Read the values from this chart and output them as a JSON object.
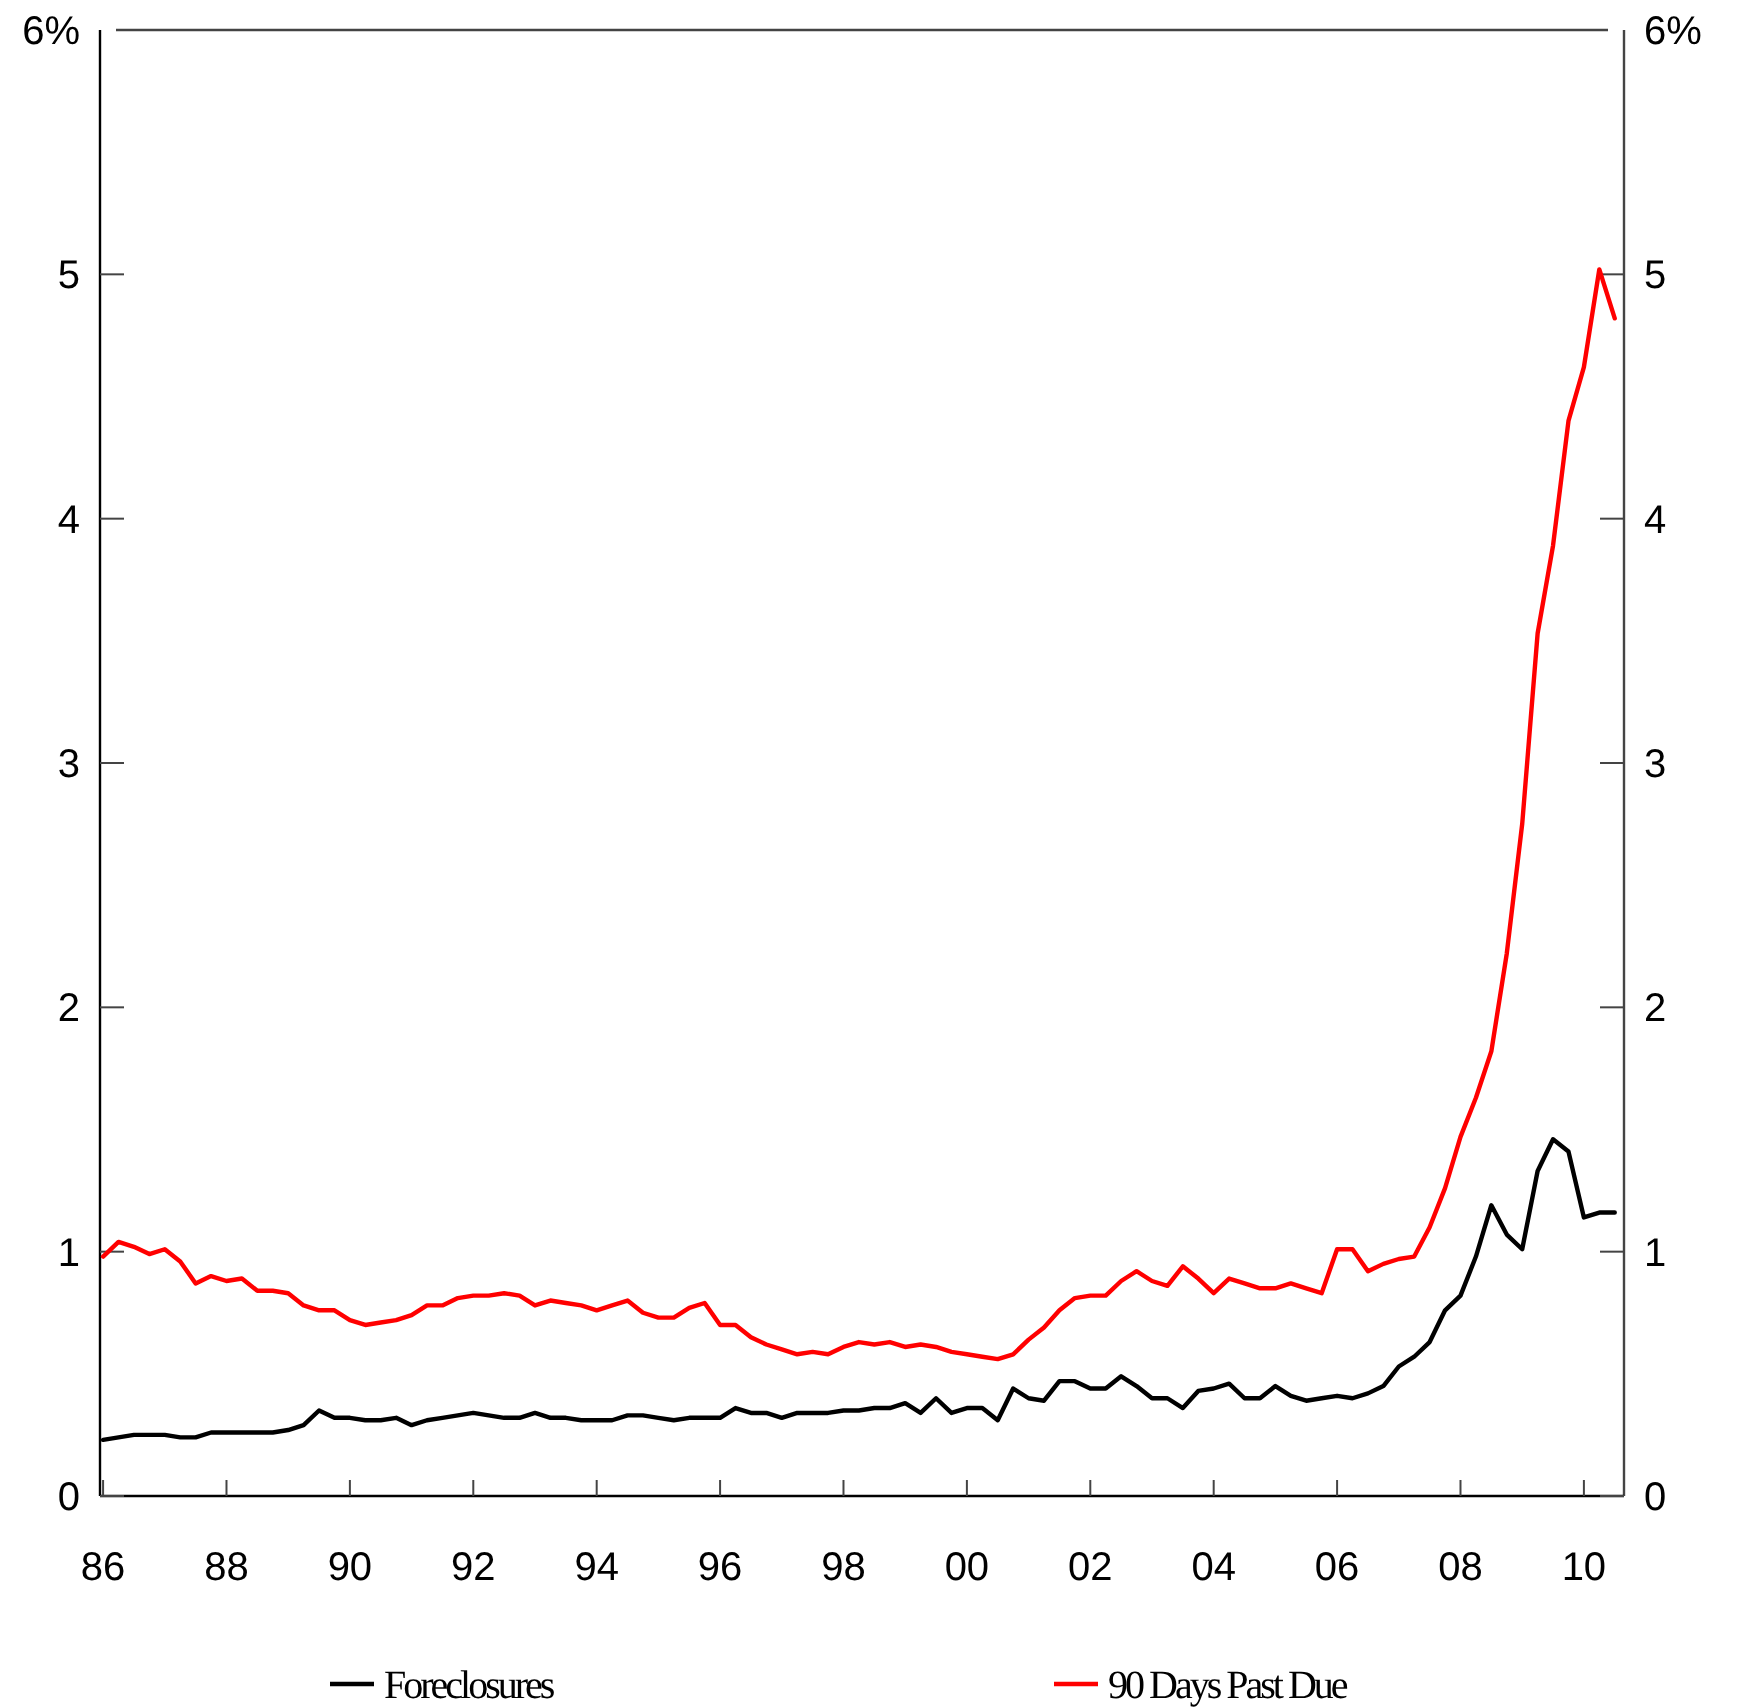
{
  "chart_data": {
    "type": "line",
    "x": [
      1986,
      1986.25,
      1986.5,
      1986.75,
      1987,
      1987.25,
      1987.5,
      1987.75,
      1988,
      1988.25,
      1988.5,
      1988.75,
      1989,
      1989.25,
      1989.5,
      1989.75,
      1990,
      1990.25,
      1990.5,
      1990.75,
      1991,
      1991.25,
      1991.5,
      1991.75,
      1992,
      1992.25,
      1992.5,
      1992.75,
      1993,
      1993.25,
      1993.5,
      1993.75,
      1994,
      1994.25,
      1994.5,
      1994.75,
      1995,
      1995.25,
      1995.5,
      1995.75,
      1996,
      1996.25,
      1996.5,
      1996.75,
      1997,
      1997.25,
      1997.5,
      1997.75,
      1998,
      1998.25,
      1998.5,
      1998.75,
      1999,
      1999.25,
      1999.5,
      1999.75,
      2000,
      2000.25,
      2000.5,
      2000.75,
      2001,
      2001.25,
      2001.5,
      2001.75,
      2002,
      2002.25,
      2002.5,
      2002.75,
      2003,
      2003.25,
      2003.5,
      2003.75,
      2004,
      2004.25,
      2004.5,
      2004.75,
      2005,
      2005.25,
      2005.5,
      2005.75,
      2006,
      2006.25,
      2006.5,
      2006.75,
      2007,
      2007.25,
      2007.5,
      2007.75,
      2008,
      2008.25,
      2008.5,
      2008.75,
      2009,
      2009.25,
      2009.5,
      2009.75,
      2010,
      2010.25,
      2010.5
    ],
    "series": [
      {
        "name": "Foreclosures",
        "color": "#000000",
        "values": [
          0.23,
          0.24,
          0.25,
          0.25,
          0.25,
          0.24,
          0.24,
          0.26,
          0.26,
          0.26,
          0.26,
          0.26,
          0.27,
          0.29,
          0.35,
          0.32,
          0.32,
          0.31,
          0.31,
          0.32,
          0.29,
          0.31,
          0.32,
          0.33,
          0.34,
          0.33,
          0.32,
          0.32,
          0.34,
          0.32,
          0.32,
          0.31,
          0.31,
          0.31,
          0.33,
          0.33,
          0.32,
          0.31,
          0.32,
          0.32,
          0.32,
          0.36,
          0.34,
          0.34,
          0.32,
          0.34,
          0.34,
          0.34,
          0.35,
          0.35,
          0.36,
          0.36,
          0.38,
          0.34,
          0.4,
          0.34,
          0.36,
          0.36,
          0.31,
          0.44,
          0.4,
          0.39,
          0.47,
          0.47,
          0.44,
          0.44,
          0.49,
          0.45,
          0.4,
          0.4,
          0.36,
          0.43,
          0.44,
          0.46,
          0.4,
          0.4,
          0.45,
          0.41,
          0.39,
          0.4,
          0.41,
          0.4,
          0.42,
          0.45,
          0.53,
          0.57,
          0.63,
          0.76,
          0.82,
          0.98,
          1.19,
          1.07,
          1.01,
          1.33,
          1.46,
          1.41,
          1.14,
          1.16,
          1.16
        ]
      },
      {
        "name": "90 Days Past Due",
        "color": "#ff0000",
        "values": [
          0.98,
          1.04,
          1.02,
          0.99,
          1.01,
          0.96,
          0.87,
          0.9,
          0.88,
          0.89,
          0.84,
          0.84,
          0.83,
          0.78,
          0.76,
          0.76,
          0.72,
          0.7,
          0.71,
          0.72,
          0.74,
          0.78,
          0.78,
          0.81,
          0.82,
          0.82,
          0.83,
          0.82,
          0.78,
          0.8,
          0.79,
          0.78,
          0.76,
          0.78,
          0.8,
          0.75,
          0.73,
          0.73,
          0.77,
          0.79,
          0.7,
          0.7,
          0.65,
          0.62,
          0.6,
          0.58,
          0.59,
          0.58,
          0.61,
          0.63,
          0.62,
          0.63,
          0.61,
          0.62,
          0.61,
          0.59,
          0.58,
          0.57,
          0.56,
          0.58,
          0.64,
          0.69,
          0.76,
          0.81,
          0.82,
          0.82,
          0.88,
          0.92,
          0.88,
          0.86,
          0.94,
          0.89,
          0.83,
          0.89,
          0.87,
          0.85,
          0.85,
          0.87,
          0.85,
          0.83,
          1.01,
          1.01,
          0.92,
          0.95,
          0.97,
          0.98,
          1.1,
          1.26,
          1.47,
          1.63,
          1.82,
          2.22,
          2.75,
          3.53,
          3.89,
          4.4,
          4.62,
          5.02,
          4.82
        ]
      }
    ],
    "xlim": [
      1985.95,
      2010.65
    ],
    "xticks": [
      {
        "value": 1986,
        "label": "86"
      },
      {
        "value": 1988,
        "label": "88"
      },
      {
        "value": 1990,
        "label": "90"
      },
      {
        "value": 1992,
        "label": "92"
      },
      {
        "value": 1994,
        "label": "94"
      },
      {
        "value": 1996,
        "label": "96"
      },
      {
        "value": 1998,
        "label": "98"
      },
      {
        "value": 2000,
        "label": "00"
      },
      {
        "value": 2002,
        "label": "02"
      },
      {
        "value": 2004,
        "label": "04"
      },
      {
        "value": 2006,
        "label": "06"
      },
      {
        "value": 2008,
        "label": "08"
      },
      {
        "value": 2010,
        "label": "10"
      }
    ],
    "ylim": [
      0,
      6
    ],
    "yticks": [
      0,
      1,
      2,
      3,
      4,
      5,
      {
        "value": 6,
        "label": "6%"
      }
    ],
    "y2lim": [
      0,
      6
    ],
    "y2ticks": [
      0,
      1,
      2,
      3,
      4,
      5,
      {
        "value": 6,
        "label": "6%"
      }
    ],
    "legend": "bottom",
    "marker": "none",
    "line_style": "solid"
  }
}
